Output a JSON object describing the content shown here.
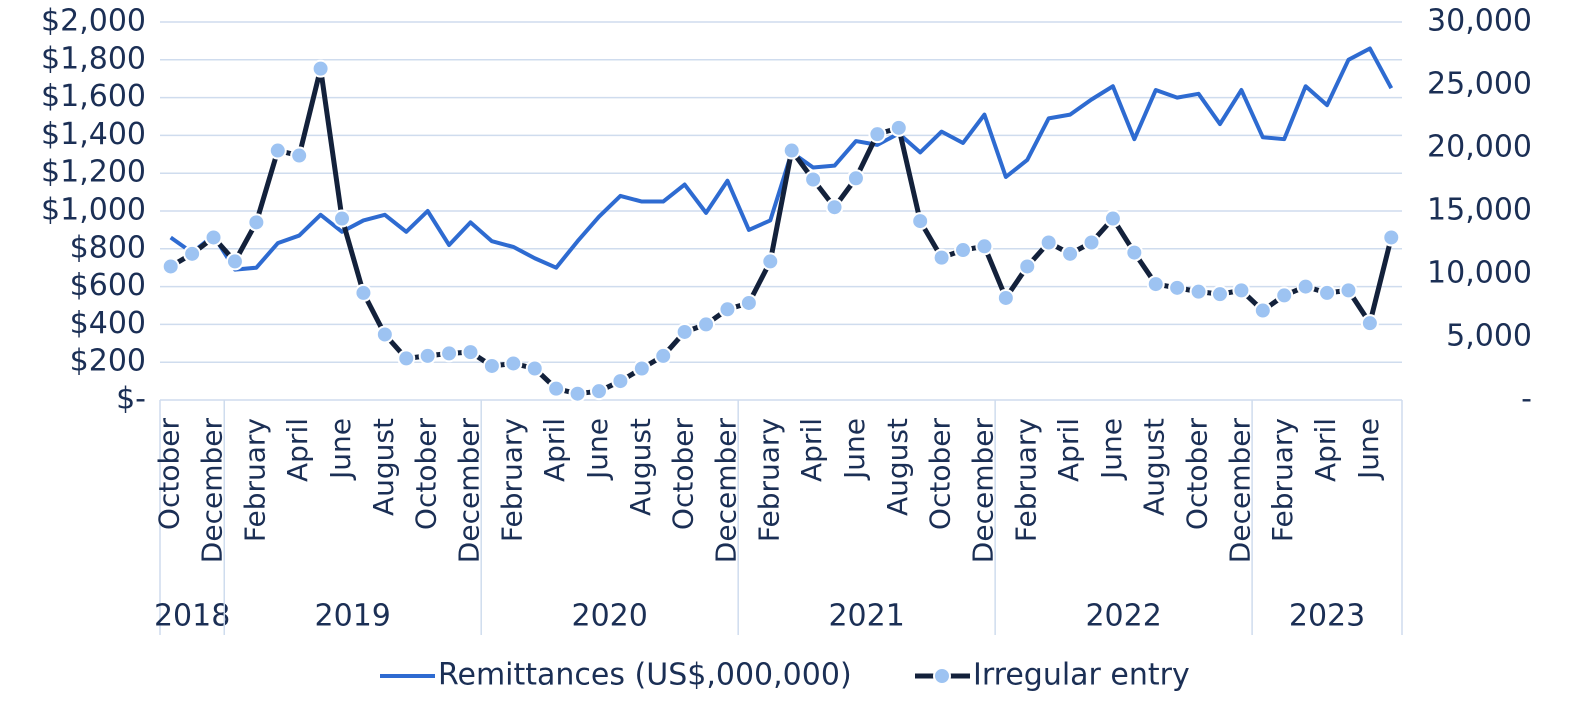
{
  "chart_data": {
    "type": "line",
    "categories": [
      "October",
      null,
      "December",
      null,
      "February",
      null,
      "April",
      null,
      "June",
      null,
      "August",
      null,
      "October",
      null,
      "December",
      null,
      "February",
      null,
      "April",
      null,
      "June",
      null,
      "August",
      null,
      "October",
      null,
      "December",
      null,
      "February",
      null,
      "April",
      null,
      "June",
      null,
      "August",
      null,
      "October",
      null,
      "December",
      null,
      "February",
      null,
      "April",
      null,
      "June",
      null,
      "August",
      null,
      "October",
      null,
      "December",
      null,
      "February",
      null,
      "April",
      null,
      "June",
      null
    ],
    "years": [
      {
        "label": "2018",
        "count": 3
      },
      {
        "label": "2019",
        "count": 12
      },
      {
        "label": "2020",
        "count": 12
      },
      {
        "label": "2021",
        "count": 12
      },
      {
        "label": "2022",
        "count": 12
      },
      {
        "label": "2023",
        "count": 7
      }
    ],
    "series": [
      {
        "name": "Remittances (US$,000,000)",
        "color": "#2e6bd1",
        "axis": "y",
        "values": [
          860,
          780,
          870,
          690,
          700,
          830,
          870,
          980,
          890,
          950,
          980,
          890,
          1000,
          820,
          940,
          840,
          810,
          750,
          700,
          840,
          970,
          1080,
          1050,
          1050,
          1140,
          990,
          1160,
          900,
          950,
          1310,
          1230,
          1240,
          1370,
          1350,
          1410,
          1310,
          1420,
          1360,
          1510,
          1180,
          1270,
          1490,
          1510,
          1590,
          1660,
          1380,
          1640,
          1600,
          1620,
          1460,
          1640,
          1390,
          1380,
          1660,
          1560,
          1800,
          1860,
          1650
        ]
      },
      {
        "name": "Irregular entry",
        "color": "#13213b",
        "marker_color": "#9dc3f2",
        "axis": "y2",
        "values": [
          10600,
          11600,
          12900,
          11000,
          14100,
          19800,
          19400,
          26300,
          14400,
          8500,
          5200,
          3300,
          3500,
          3700,
          3800,
          2700,
          2900,
          2500,
          900,
          500,
          700,
          1500,
          2500,
          3500,
          5400,
          6000,
          7200,
          7700,
          11000,
          19800,
          17500,
          15300,
          17600,
          21100,
          21600,
          14200,
          11300,
          11900,
          12200,
          8100,
          10600,
          12500,
          11600,
          12500,
          14400,
          11700,
          9200,
          8900,
          8600,
          8400,
          8700,
          7100,
          8300,
          9000,
          8500,
          8700,
          6100,
          12900
        ]
      }
    ],
    "ylim": [
      0,
      2000
    ],
    "yticks": [
      {
        "value": 0,
        "label": "$-"
      },
      {
        "value": 200,
        "label": "$200"
      },
      {
        "value": 400,
        "label": "$400"
      },
      {
        "value": 600,
        "label": "$600"
      },
      {
        "value": 800,
        "label": "$800"
      },
      {
        "value": 1000,
        "label": "$1,000"
      },
      {
        "value": 1200,
        "label": "$1,200"
      },
      {
        "value": 1400,
        "label": "$1,400"
      },
      {
        "value": 1600,
        "label": "$1,600"
      },
      {
        "value": 1800,
        "label": "$1,800"
      },
      {
        "value": 2000,
        "label": "$2,000"
      }
    ],
    "y2lim": [
      0,
      30000
    ],
    "y2ticks": [
      {
        "value": 0,
        "label": "-"
      },
      {
        "value": 5000,
        "label": "5,000"
      },
      {
        "value": 10000,
        "label": "10,000"
      },
      {
        "value": 15000,
        "label": "15,000"
      },
      {
        "value": 20000,
        "label": "20,000"
      },
      {
        "value": 25000,
        "label": "25,000"
      },
      {
        "value": 30000,
        "label": "30,000"
      }
    ],
    "grid": true,
    "legend": "bottom"
  }
}
